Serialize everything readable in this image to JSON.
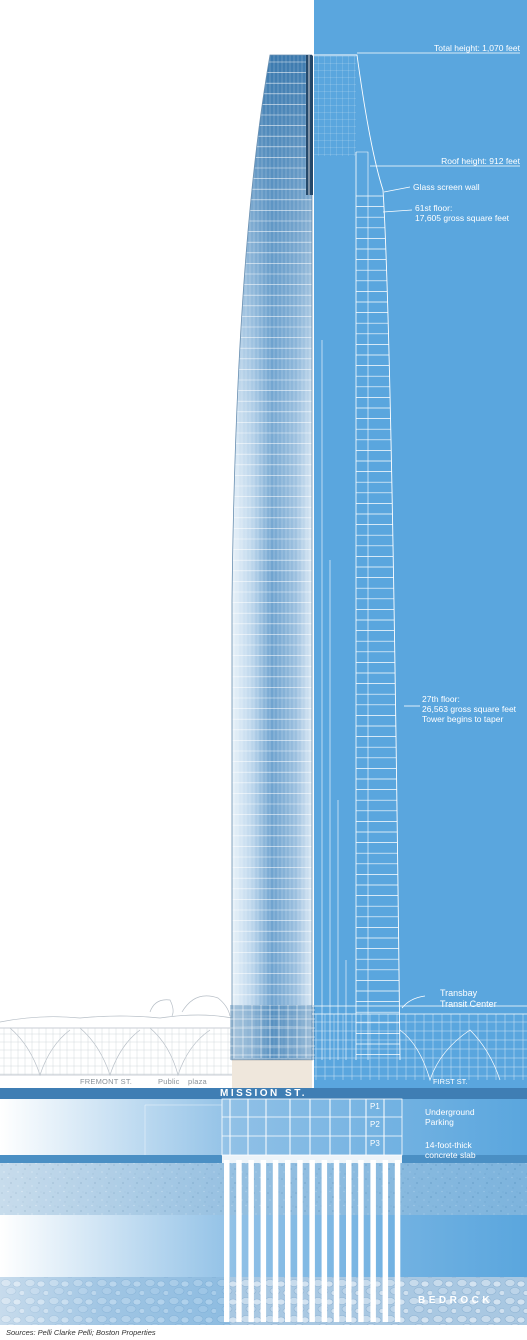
{
  "labels": {
    "total_height": "Total height: 1,070 feet",
    "roof_height": "Roof height: 912 feet",
    "glass_screen": "Glass screen wall",
    "floor61_title": "61st floor:",
    "floor61_area": "17,605 gross square feet",
    "floor27_title": "27th floor:",
    "floor27_area": "26,563 gross square feet",
    "floor27_note": "Tower begins to taper",
    "transbay_1": "Transbay",
    "transbay_2": "Transit Center",
    "fremont": "FREMONT ST.",
    "public": "Public",
    "plaza": "plaza",
    "first_st": "FIRST ST.",
    "mission": "MISSION ST.",
    "p1": "P1",
    "p2": "P2",
    "p3": "P3",
    "parking_1": "Underground",
    "parking_2": "Parking",
    "slab_1": "14-foot-thick",
    "slab_2": "concrete slab",
    "bedrock": "BEDROCK",
    "sources": "Sources: Pelli Clarke Pelli; Boston Properties"
  },
  "colors": {
    "panel_blue": "#5aa6de",
    "line_white": "#ffffff",
    "glass_dark": "#2f6fa6",
    "glass_light": "#cfe3f3",
    "mission_band": "#3f7eb4",
    "slab": "#4a8fc4"
  }
}
